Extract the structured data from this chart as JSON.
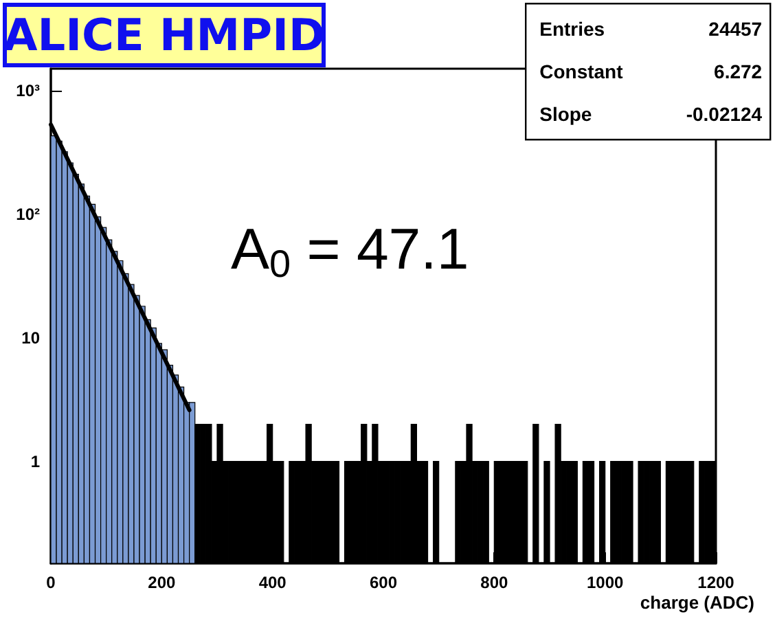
{
  "chart_data": {
    "type": "histogram",
    "title": "ALICE HMPID",
    "xlabel": "charge (ADC)",
    "annotations": [
      "Entries 24457",
      "Constant 6.272",
      "Slope -0.02124",
      "A$_{0}$ = 47.1"
    ],
    "bins": [
      0,
      10,
      20,
      30,
      40,
      50,
      60,
      70,
      80,
      90,
      100,
      110,
      120,
      130,
      140,
      150,
      160,
      170,
      180,
      190,
      200,
      210,
      220,
      230,
      240,
      250,
      260,
      270,
      280,
      290,
      300,
      310,
      320,
      330,
      340,
      350,
      360,
      370,
      380,
      390,
      400,
      410,
      420,
      430,
      440,
      450,
      460,
      470,
      480,
      490,
      500,
      510,
      520,
      530,
      540,
      550,
      560,
      570,
      580,
      590,
      600,
      610,
      620,
      630,
      640,
      650,
      660,
      670,
      680,
      690,
      700,
      710,
      720,
      730,
      740,
      750,
      760,
      770,
      780,
      790,
      800,
      810,
      820,
      830,
      840,
      850,
      860,
      870,
      880,
      890,
      900,
      910,
      920,
      930,
      940,
      950,
      960,
      970,
      980,
      990,
      1000,
      1010,
      1020,
      1030,
      1040,
      1050,
      1060,
      1070,
      1080,
      1090,
      1100,
      1110,
      1120,
      1130,
      1140,
      1150,
      1160,
      1170,
      1180,
      1190,
      1200
    ],
    "values": [
      430,
      390,
      320,
      260,
      210,
      175,
      140,
      120,
      95,
      78,
      62,
      50,
      42,
      33,
      27,
      22,
      18,
      14,
      12,
      9,
      8,
      6,
      5,
      4,
      3,
      3,
      2,
      2,
      2,
      1,
      2,
      1,
      1,
      1,
      1,
      1,
      1,
      1,
      1,
      2,
      1,
      1,
      null,
      1,
      1,
      1,
      2,
      1,
      1,
      1,
      1,
      1,
      null,
      1,
      1,
      1,
      2,
      1,
      2,
      1,
      1,
      1,
      1,
      1,
      1,
      2,
      1,
      1,
      null,
      1,
      null,
      null,
      null,
      1,
      1,
      2,
      1,
      1,
      1,
      null,
      1,
      1,
      1,
      1,
      1,
      1,
      null,
      2,
      null,
      1,
      null,
      2,
      1,
      1,
      1,
      null,
      1,
      1,
      null,
      1,
      null,
      1,
      1,
      1,
      1,
      null,
      1,
      1,
      1,
      1,
      null,
      1,
      1,
      1,
      1,
      1,
      null,
      1,
      1,
      1
    ],
    "colors": [
      "#7b9bd3",
      "#7b9bd3",
      "#7b9bd3",
      "#7b9bd3",
      "#7b9bd3",
      "#7b9bd3",
      "#7b9bd3",
      "#7b9bd3",
      "#7b9bd3",
      "#7b9bd3",
      "#7b9bd3",
      "#7b9bd3",
      "#7b9bd3",
      "#7b9bd3",
      "#7b9bd3",
      "#7b9bd3",
      "#7b9bd3",
      "#7b9bd3",
      "#7b9bd3",
      "#7b9bd3",
      "#7b9bd3",
      "#7b9bd3",
      "#7b9bd3",
      "#7b9bd3",
      "#7b9bd3",
      "#7b9bd3",
      "#000000",
      "#000000",
      "#000000",
      "#000000",
      "#000000",
      "#000000",
      "#000000",
      "#000000",
      "#000000",
      "#000000",
      "#000000",
      "#000000",
      "#000000",
      "#000000",
      "#000000",
      "#000000",
      "#000000",
      "#000000",
      "#000000",
      "#000000",
      "#000000",
      "#000000",
      "#000000",
      "#000000",
      "#000000",
      "#000000",
      "#000000",
      "#000000",
      "#000000",
      "#000000",
      "#000000",
      "#000000",
      "#000000",
      "#000000",
      "#000000",
      "#000000",
      "#000000",
      "#000000",
      "#000000",
      "#000000",
      "#000000",
      "#000000",
      "#000000",
      "#000000",
      "#000000",
      "#000000",
      "#000000",
      "#000000",
      "#000000",
      "#000000",
      "#000000",
      "#000000",
      "#000000",
      "#000000",
      "#000000",
      "#000000",
      "#000000",
      "#000000",
      "#000000",
      "#000000",
      "#000000",
      "#000000",
      "#000000",
      "#000000",
      "#000000",
      "#000000",
      "#000000",
      "#000000",
      "#000000",
      "#000000",
      "#000000",
      "#000000",
      "#000000",
      "#000000",
      "#000000",
      "#000000",
      "#000000",
      "#000000",
      "#000000",
      "#000000",
      "#000000",
      "#000000",
      "#000000",
      "#000000",
      "#000000",
      "#000000",
      "#000000",
      "#000000",
      "#000000",
      "#000000",
      "#000000",
      "#000000",
      "#000000",
      "#000000"
    ],
    "series": [
      {
        "type": "line",
        "color": "#000000",
        "x": [
          0,
          100,
          200,
          250
        ],
        "values": [
          530,
          63,
          7.6,
          2.6
        ]
      }
    ],
    "log": "y",
    "xlim": [
      0,
      1200
    ],
    "xticks": [
      0,
      200,
      400,
      600,
      800,
      1000,
      1200
    ],
    "ylim": [
      0.15,
      1500
    ],
    "yticks": [
      1,
      10,
      {
        "value": 100,
        "label": "10²"
      },
      {
        "value": 1000,
        "label": "10³"
      }
    ],
    "grid": false,
    "marker": "none",
    "line_style": "solid"
  }
}
